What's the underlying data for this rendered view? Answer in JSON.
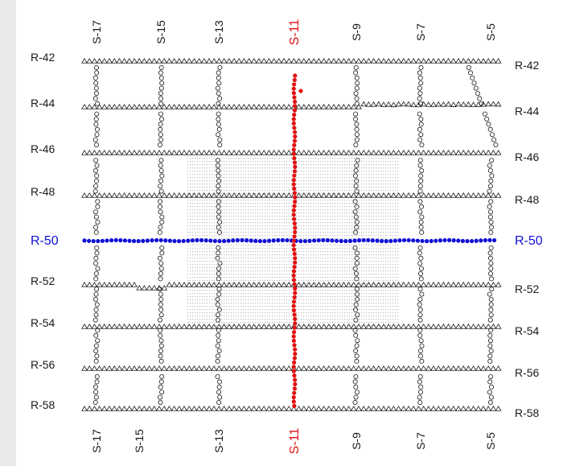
{
  "map": {
    "colors": {
      "background": "#e9e9ec",
      "panel": "#ffffff",
      "black": "#1a1a1a",
      "highlight_receiver_line": "#1010d8",
      "highlight_source_line": "#e01010",
      "patch": "#bdbdbd"
    },
    "receiver_lines": [
      {
        "id": "R-42",
        "left": "R-42",
        "right": "R-42",
        "highlight": false
      },
      {
        "id": "R-44",
        "left": "R-44",
        "right": "R-44",
        "highlight": false
      },
      {
        "id": "R-46",
        "left": "R-46",
        "right": "R-46",
        "highlight": false
      },
      {
        "id": "R-48",
        "left": "R-48",
        "right": "R-48",
        "highlight": false
      },
      {
        "id": "R-50",
        "left": "R-50",
        "right": "R-50",
        "highlight": true
      },
      {
        "id": "R-52",
        "left": "R-52",
        "right": "R-52",
        "highlight": false
      },
      {
        "id": "R-54",
        "left": "R-54",
        "right": "R-54",
        "highlight": false
      },
      {
        "id": "R-56",
        "left": "R-56",
        "right": "R-56",
        "highlight": false
      },
      {
        "id": "R-58",
        "left": "R-58",
        "right": "R-58",
        "highlight": false
      }
    ],
    "source_lines_top": [
      {
        "id": "S-17",
        "text": "S-17",
        "highlight": false
      },
      {
        "id": "S-15",
        "text": "S-15",
        "highlight": false
      },
      {
        "id": "S-13",
        "text": "S-13",
        "highlight": false
      },
      {
        "id": "S-11",
        "text": "S-11",
        "highlight": true
      },
      {
        "id": "S-9",
        "text": "S-9",
        "highlight": false
      },
      {
        "id": "S-7",
        "text": "S-7",
        "highlight": false
      },
      {
        "id": "S-5",
        "text": "S-5",
        "highlight": false
      }
    ],
    "source_lines_bottom": [
      {
        "id": "S-17",
        "text": "S-17",
        "highlight": false
      },
      {
        "id": "S-15",
        "text": "S-15",
        "highlight": false
      },
      {
        "id": "S-13",
        "text": "S-13",
        "highlight": false
      },
      {
        "id": "S-11",
        "text": "S-11",
        "highlight": true
      },
      {
        "id": "S-9",
        "text": "S-9",
        "highlight": false
      },
      {
        "id": "S-7",
        "text": "S-7",
        "highlight": false
      },
      {
        "id": "S-5",
        "text": "S-5",
        "highlight": false
      }
    ],
    "legend_symbols": {
      "receiver": "triangle-icon",
      "source": "circle-icon",
      "highlight_point": "filled-dot-icon"
    }
  }
}
